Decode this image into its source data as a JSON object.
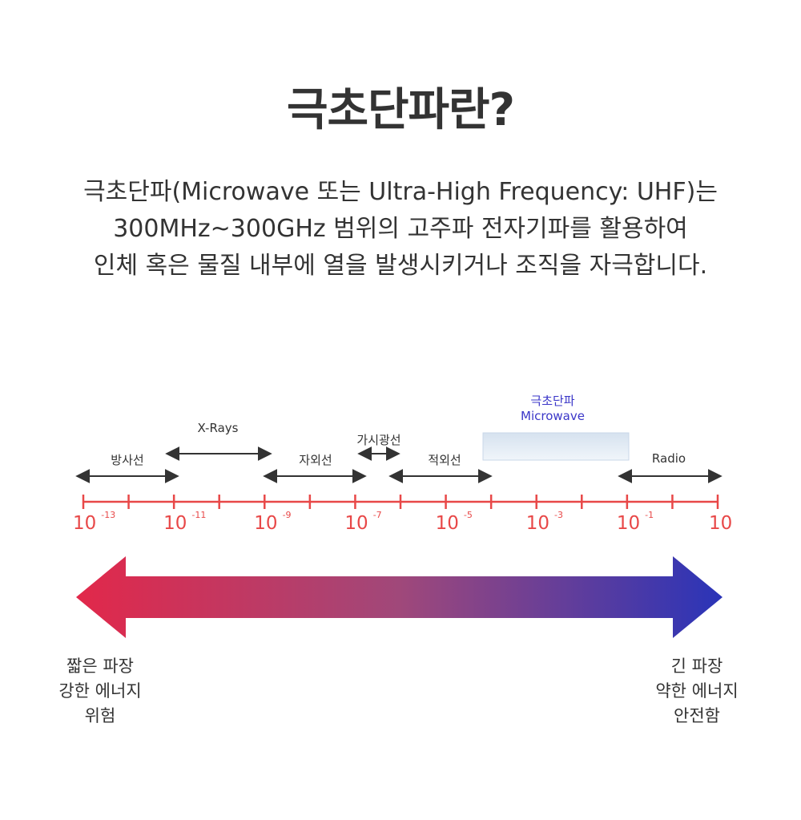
{
  "title": "극초단파란?",
  "description": {
    "line1": "극초단파(Microwave 또는 Ultra-High Frequency: UHF)는",
    "line2": "300MHz~300GHz 범위의 고주파 전자기파를 활용하여",
    "line3": "인체 혹은 물질 내부에 열을 발생시키거나 조직을 자극합니다."
  },
  "spectrum": {
    "bands": [
      {
        "name": "방사선"
      },
      {
        "name": "X-Rays"
      },
      {
        "name": "자외선"
      },
      {
        "name": "가시광선"
      },
      {
        "name": "적외선"
      },
      {
        "name": "Radio"
      }
    ],
    "highlight": {
      "name_ko": "극초단파",
      "name_en": "Microwave"
    },
    "ticks": [
      {
        "base": "10",
        "exp": "-13"
      },
      {
        "base": "10",
        "exp": "-11"
      },
      {
        "base": "10",
        "exp": "-9"
      },
      {
        "base": "10",
        "exp": "-7"
      },
      {
        "base": "10",
        "exp": "-5"
      },
      {
        "base": "10",
        "exp": "-3"
      },
      {
        "base": "10",
        "exp": "-1"
      },
      {
        "base": "10",
        "exp": ""
      }
    ],
    "left_end": {
      "line1": "짧은 파장",
      "line2": "강한 에너지",
      "line3": "위험"
    },
    "right_end": {
      "line1": "긴 파장",
      "line2": "약한 에너지",
      "line3": "안전함"
    },
    "colors": {
      "axis": "#e84848",
      "arrow_left": "#e2284a",
      "arrow_right": "#2a34b8",
      "highlight": "#3a36c8",
      "band_arrow": "#333333"
    }
  }
}
